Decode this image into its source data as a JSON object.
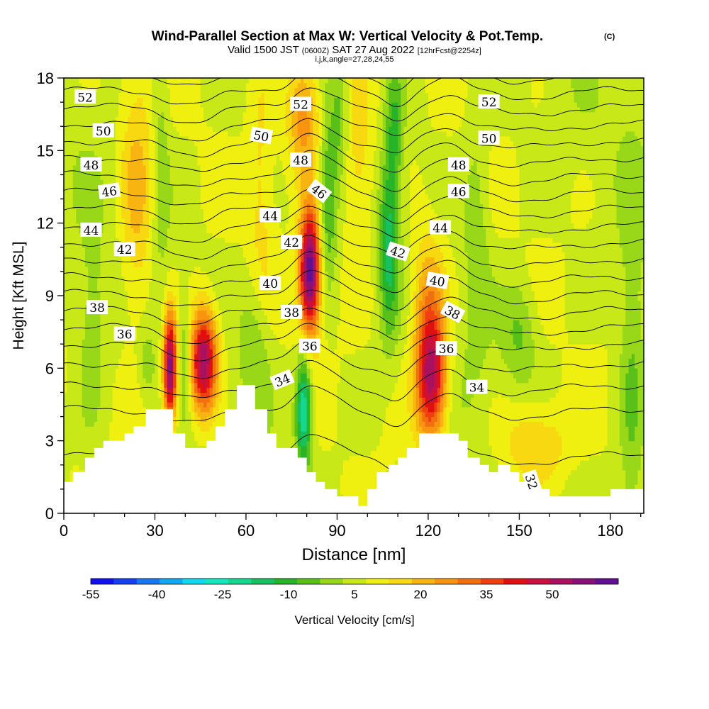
{
  "chart_data": {
    "type": "heatmap",
    "title": "Wind-Parallel Section at Max W: Vertical Velocity & Pot.Temp.",
    "title_suffix": "(C)",
    "subtitle_prefix": "Valid 1500 JST",
    "subtitle_zulu": "(0600Z)",
    "subtitle_date": "SAT 27 Aug 2022",
    "subtitle_fcst": "[12hrFcst@2254z]",
    "subtitle2": "i,j,k,angle=27,28,24,55",
    "xlabel": "Distance [nm]",
    "ylabel": "Height [Kft MSL]",
    "xlim": [
      0,
      191
    ],
    "ylim": [
      0,
      18
    ],
    "x_ticks": [
      0,
      30,
      60,
      90,
      120,
      150,
      180
    ],
    "y_ticks": [
      0,
      3,
      6,
      9,
      12,
      15,
      18
    ],
    "grid": false,
    "colorbar": {
      "label": "Vertical Velocity [cm/s]",
      "tick_labels": [
        "-55",
        "-40",
        "-25",
        "-10",
        "5",
        "20",
        "35",
        "50"
      ],
      "tick_values": [
        -55,
        -40,
        -25,
        -10,
        5,
        20,
        35,
        50
      ],
      "min": -55,
      "max": 65,
      "colors": [
        "#1010f0",
        "#1440f0",
        "#1878f0",
        "#10a8f0",
        "#10d8f0",
        "#10e8c0",
        "#14d890",
        "#18c060",
        "#28b428",
        "#58c018",
        "#98d818",
        "#c8e818",
        "#f0f010",
        "#f8d810",
        "#f8b410",
        "#f89410",
        "#f07010",
        "#f04010",
        "#e01010",
        "#c81040",
        "#a81060",
        "#881078",
        "#601090"
      ]
    },
    "terrain": [
      [
        0,
        1.3
      ],
      [
        3,
        1.3
      ],
      [
        3,
        1.7
      ],
      [
        7,
        1.7
      ],
      [
        7,
        2.3
      ],
      [
        10,
        2.3
      ],
      [
        10,
        2.7
      ],
      [
        13,
        2.7
      ],
      [
        13,
        3.0
      ],
      [
        20,
        3.0
      ],
      [
        20,
        3.3
      ],
      [
        23,
        3.3
      ],
      [
        23,
        3.6
      ],
      [
        27,
        3.6
      ],
      [
        27,
        4.3
      ],
      [
        33,
        4.3
      ],
      [
        33,
        4.3
      ],
      [
        36,
        4.3
      ],
      [
        36,
        3.3
      ],
      [
        40,
        3.3
      ],
      [
        40,
        2.7
      ],
      [
        47,
        2.7
      ],
      [
        47,
        3.0
      ],
      [
        50,
        3.0
      ],
      [
        50,
        3.6
      ],
      [
        53,
        3.6
      ],
      [
        53,
        4.3
      ],
      [
        57,
        4.3
      ],
      [
        57,
        5.3
      ],
      [
        60,
        5.3
      ],
      [
        60,
        5.3
      ],
      [
        63,
        5.3
      ],
      [
        63,
        4.3
      ],
      [
        67,
        4.3
      ],
      [
        67,
        3.3
      ],
      [
        70,
        3.3
      ],
      [
        70,
        2.7
      ],
      [
        77,
        2.7
      ],
      [
        77,
        2.3
      ],
      [
        80,
        2.3
      ],
      [
        80,
        1.7
      ],
      [
        83,
        1.7
      ],
      [
        83,
        1.3
      ],
      [
        86,
        1.3
      ],
      [
        86,
        1.0
      ],
      [
        90,
        1.0
      ],
      [
        90,
        0.7
      ],
      [
        97,
        0.7
      ],
      [
        97,
        0.3
      ],
      [
        100,
        0.3
      ],
      [
        100,
        1.0
      ],
      [
        103,
        1.0
      ],
      [
        103,
        1.7
      ],
      [
        107,
        1.7
      ],
      [
        107,
        2.0
      ],
      [
        110,
        2.0
      ],
      [
        110,
        2.3
      ],
      [
        113,
        2.3
      ],
      [
        113,
        2.7
      ],
      [
        117,
        2.7
      ],
      [
        117,
        3.3
      ],
      [
        130,
        3.3
      ],
      [
        130,
        3.0
      ],
      [
        133,
        3.0
      ],
      [
        133,
        2.3
      ],
      [
        137,
        2.3
      ],
      [
        137,
        2.0
      ],
      [
        140,
        2.0
      ],
      [
        140,
        1.7
      ],
      [
        143,
        1.7
      ],
      [
        143,
        2.0
      ],
      [
        147,
        2.0
      ],
      [
        147,
        1.7
      ],
      [
        150,
        1.7
      ],
      [
        150,
        1.3
      ],
      [
        153,
        1.3
      ],
      [
        153,
        1.0
      ],
      [
        160,
        1.0
      ],
      [
        160,
        0.7
      ],
      [
        170,
        0.7
      ],
      [
        170,
        0.7
      ],
      [
        180,
        0.7
      ],
      [
        180,
        1.0
      ],
      [
        191,
        1.0
      ]
    ],
    "updrafts": [
      {
        "x": 35,
        "y": 6.0,
        "sx": 1.6,
        "sy": 1.6,
        "w": 55
      },
      {
        "x": 46,
        "y": 6.3,
        "sx": 3.2,
        "sy": 1.5,
        "w": 50
      },
      {
        "x": 81,
        "y": 10.0,
        "sx": 2.4,
        "sy": 1.8,
        "w": 58
      },
      {
        "x": 79,
        "y": 16.5,
        "sx": 4.0,
        "sy": 1.8,
        "w": 22
      },
      {
        "x": 121,
        "y": 5.6,
        "sx": 3.5,
        "sy": 1.8,
        "w": 45
      },
      {
        "x": 120,
        "y": 9.0,
        "sx": 4.0,
        "sy": 2.0,
        "w": 18
      },
      {
        "x": 24,
        "y": 13.0,
        "sx": 4.0,
        "sy": 4.0,
        "w": 14
      },
      {
        "x": 155,
        "y": 2.8,
        "sx": 8.0,
        "sy": 1.3,
        "w": 14
      },
      {
        "x": 97,
        "y": 14.5,
        "sx": 4.0,
        "sy": 3.0,
        "w": 12
      },
      {
        "x": 65,
        "y": 13.5,
        "sx": 3.0,
        "sy": 4.0,
        "w": 8
      }
    ],
    "downdrafts": [
      {
        "x": 79,
        "y": 4.3,
        "sx": 1.8,
        "sy": 1.6,
        "w": -32
      },
      {
        "x": 107,
        "y": 11.0,
        "sx": 2.2,
        "sy": 2.6,
        "w": -20
      },
      {
        "x": 109,
        "y": 16.0,
        "sx": 2.0,
        "sy": 2.0,
        "w": -14
      },
      {
        "x": 87,
        "y": 13.0,
        "sx": 2.0,
        "sy": 2.5,
        "w": -15
      },
      {
        "x": 40,
        "y": 6.5,
        "sx": 1.5,
        "sy": 1.4,
        "w": -12
      },
      {
        "x": 91,
        "y": 16.5,
        "sx": 2.0,
        "sy": 2.0,
        "w": -10
      },
      {
        "x": 63,
        "y": 7.0,
        "sx": 3.5,
        "sy": 2.0,
        "w": -10
      },
      {
        "x": 9,
        "y": 7.5,
        "sx": 3.0,
        "sy": 3.0,
        "w": -8
      },
      {
        "x": 27,
        "y": 6.2,
        "sx": 2.0,
        "sy": 1.0,
        "w": -8
      },
      {
        "x": 136,
        "y": 11.5,
        "sx": 3.0,
        "sy": 4.0,
        "w": -8
      },
      {
        "x": 150,
        "y": 7.5,
        "sx": 4.0,
        "sy": 1.5,
        "w": -10
      },
      {
        "x": 187,
        "y": 5.0,
        "sx": 3.0,
        "sy": 6.0,
        "w": -10
      },
      {
        "x": 32,
        "y": 15.0,
        "sx": 2.0,
        "sy": 4.0,
        "w": -8
      }
    ],
    "isentropes": {
      "values": [
        32,
        33,
        34,
        35,
        36,
        37,
        38,
        39,
        40,
        41,
        42,
        43,
        44,
        45,
        46,
        47,
        48,
        49,
        50,
        51,
        52,
        53
      ],
      "base_height": [
        2.4,
        4.3,
        5.3,
        6.2,
        7.0,
        7.7,
        8.4,
        9.1,
        9.8,
        10.5,
        11.2,
        11.9,
        12.6,
        13.3,
        14.0,
        14.7,
        15.4,
        16.1,
        16.8,
        17.5,
        18.2,
        18.9
      ],
      "perturbations": [
        {
          "x": 42,
          "sx": 8,
          "a": -0.6
        },
        {
          "x": 82,
          "sx": 6,
          "a": 0.9
        },
        {
          "x": 110,
          "sx": 6,
          "a": -0.6
        },
        {
          "x": 125,
          "sx": 7,
          "a": 0.6
        },
        {
          "x": 150,
          "sx": 12,
          "a": -0.3
        }
      ]
    },
    "contour_labels": [
      {
        "text": "52",
        "x": 7,
        "y": 17.2,
        "rot": 0
      },
      {
        "text": "50",
        "x": 13,
        "y": 15.8,
        "rot": 0
      },
      {
        "text": "48",
        "x": 9,
        "y": 14.4,
        "rot": 0
      },
      {
        "text": "46",
        "x": 15,
        "y": 13.3,
        "rot": -8
      },
      {
        "text": "44",
        "x": 9,
        "y": 11.7,
        "rot": 0
      },
      {
        "text": "42",
        "x": 20,
        "y": 10.9,
        "rot": 0
      },
      {
        "text": "38",
        "x": 11,
        "y": 8.5,
        "rot": 0
      },
      {
        "text": "36",
        "x": 20,
        "y": 7.4,
        "rot": 0
      },
      {
        "text": "52",
        "x": 78,
        "y": 16.9,
        "rot": 0
      },
      {
        "text": "50",
        "x": 65,
        "y": 15.6,
        "rot": 10
      },
      {
        "text": "48",
        "x": 78,
        "y": 14.6,
        "rot": 0
      },
      {
        "text": "46",
        "x": 84,
        "y": 13.3,
        "rot": 38
      },
      {
        "text": "44",
        "x": 68,
        "y": 12.3,
        "rot": 0
      },
      {
        "text": "42",
        "x": 75,
        "y": 11.2,
        "rot": 0
      },
      {
        "text": "40",
        "x": 68,
        "y": 9.5,
        "rot": 0
      },
      {
        "text": "38",
        "x": 75,
        "y": 8.3,
        "rot": 0
      },
      {
        "text": "36",
        "x": 81,
        "y": 6.9,
        "rot": 0
      },
      {
        "text": "34",
        "x": 72,
        "y": 5.5,
        "rot": -22
      },
      {
        "text": "52",
        "x": 140,
        "y": 17.0,
        "rot": 0
      },
      {
        "text": "50",
        "x": 140,
        "y": 15.5,
        "rot": 0
      },
      {
        "text": "48",
        "x": 130,
        "y": 14.4,
        "rot": 0
      },
      {
        "text": "46",
        "x": 130,
        "y": 13.3,
        "rot": 0
      },
      {
        "text": "44",
        "x": 124,
        "y": 11.8,
        "rot": 0
      },
      {
        "text": "42",
        "x": 110,
        "y": 10.8,
        "rot": 18
      },
      {
        "text": "40",
        "x": 123,
        "y": 9.6,
        "rot": 10
      },
      {
        "text": "38",
        "x": 128,
        "y": 8.3,
        "rot": 28
      },
      {
        "text": "36",
        "x": 126,
        "y": 6.8,
        "rot": 0
      },
      {
        "text": "34",
        "x": 136,
        "y": 5.2,
        "rot": 0
      },
      {
        "text": "32",
        "x": 154,
        "y": 1.3,
        "rot": 72
      }
    ]
  }
}
